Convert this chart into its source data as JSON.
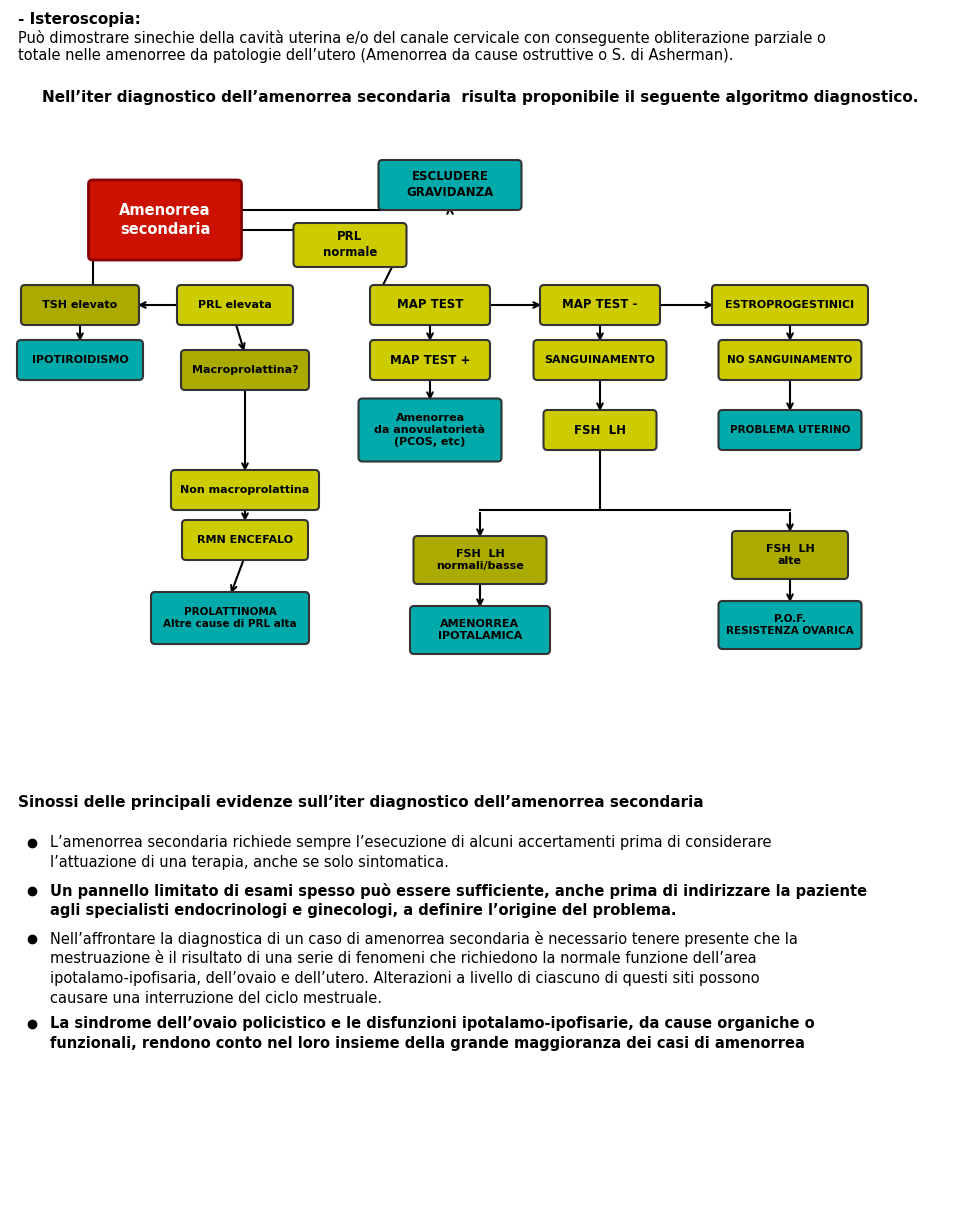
{
  "top_bold": "- Isteroscopia:",
  "top_l1": "Può dimostrare sinechie della cavità uterina e/o del canale cervicale con conseguente obliterazione parziale o",
  "top_l2": "totale nelle amenorree da patologie dell’utero (Amenorrea da cause ostruttive o S. di Asherman).",
  "algo_title": "Nell’iter diagnostico dell’amenorrea secondaria  risulta proponibile il seguente algoritmo diagnostico.",
  "bottom_title": "Sinossi delle principali evidenze sull’iter diagnostico dell’amenorrea secondaria",
  "b1l1": "L’amenorrea secondaria richiede sempre l’esecuzione di alcuni accertamenti prima di considerare",
  "b1l2": "l’attuazione di una terapia, anche se solo sintomatica.",
  "b2l1": "Un pannello limitato di esami spesso può essere sufficiente, anche prima di indirizzare la paziente",
  "b2l2": "agli specialisti endocrinologi e ginecologi, a definire l’origine del problema.",
  "b3l1": "Nell’affrontare la diagnostica di un caso di amenorrea secondaria è necessario tenere presente che la",
  "b3l2": "mestruazione è il risultato di una serie di fenomeni che richiedono la normale funzione dell’area",
  "b3l3": "ipotalamo-ipofisaria, dell’ovaio e dell’utero. Alterazioni a livello di ciascuno di questi siti possono",
  "b3l4": "causare una interruzione del ciclo mestruale.",
  "b4l1": "La sindrome dell’ovaio policistico e le disfunzioni ipotalamo-ipofisarie, da cause organiche o",
  "b4l2": "funzionali, rendono conto nel loro insieme della grande maggioranza dei casi di amenorrea",
  "col_red": "#CC1100",
  "col_yellow": "#CCCC00",
  "col_teal": "#00AAAA",
  "col_yg": "#AAAA00"
}
